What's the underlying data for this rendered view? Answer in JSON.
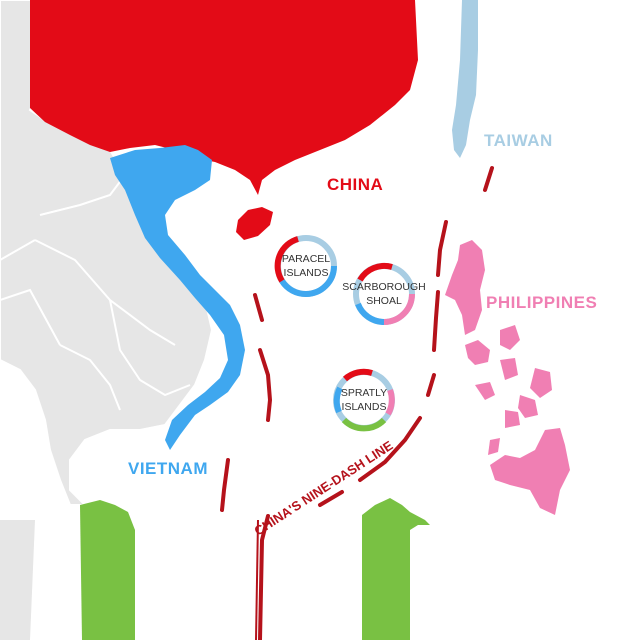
{
  "labels": {
    "china": "CHINA",
    "taiwan": "TAIWAN",
    "philippines": "PHILIPPINES",
    "vietnam": "VIETNAM",
    "nine_dash_line": "CHINA'S NINE-DASH LINE"
  },
  "islands": {
    "paracel": [
      "PARACEL",
      "ISLANDS"
    ],
    "scarborough": [
      "SCARBOROUGH",
      "SHOAL"
    ],
    "spratly": [
      "SPRATLY",
      "ISLANDS"
    ]
  },
  "colors": {
    "china": "#e30b17",
    "taiwan": "#a8cde3",
    "philippines": "#f07fb3",
    "vietnam": "#3fa7ef",
    "green_land": "#79c143",
    "neighbor_land": "#e6e6e6",
    "nine_dash": "#b5121b",
    "ring_blue": "#3fa7ef",
    "ring_light_blue": "#a8cde3",
    "ring_red": "#e30b17",
    "ring_pink": "#f07fb3",
    "ring_green": "#79c143"
  }
}
